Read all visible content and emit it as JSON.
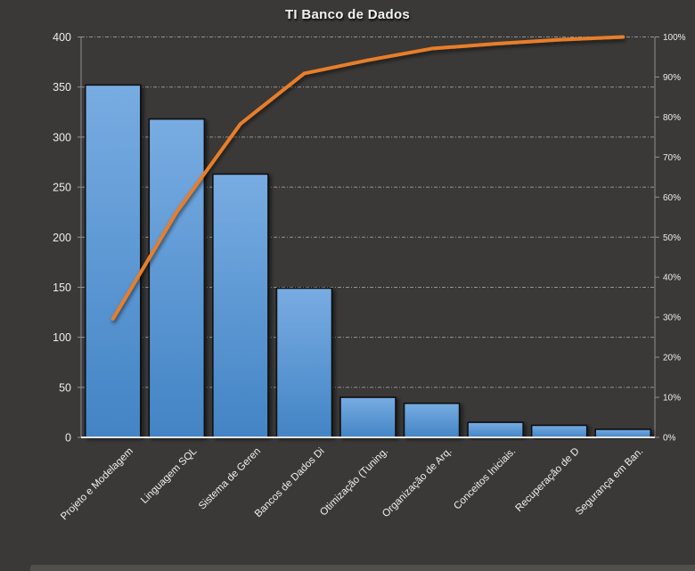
{
  "title": "TI Banco de Dados",
  "colors": {
    "background": "#3a3938",
    "bar_top": "#78ace2",
    "bar_bottom": "#4384c5",
    "bar_border": "#0d0d0d",
    "line": "#e87e2b",
    "grid": "#cccccc",
    "axis": "#8f8f8f",
    "baseline": "#f0f0f0",
    "text": "#ededed",
    "bottom_strip": "#504f4c"
  },
  "chart_data": {
    "type": "bar",
    "subtype": "pareto",
    "title": "TI Banco de Dados",
    "legend": "none",
    "grid": "horizontal-dashed",
    "categories": [
      "Projeto e Modelagem",
      "Linguagem SQL",
      "Sistema de Geren",
      "Bancos de Dados Di",
      "Otimização (Tuning.",
      "Organização de Arq.",
      "Conceitos Iniciais.",
      "Recuperação de D",
      "Segurança em Ban."
    ],
    "bar_values": [
      352,
      318,
      263,
      149,
      40,
      34,
      15,
      12,
      8
    ],
    "cumulative_percent": [
      29.6,
      56.3,
      78.3,
      90.9,
      94.2,
      97.1,
      98.3,
      99.3,
      100
    ],
    "bar_color": "#5b9bd5",
    "line_color": "#e87e2b",
    "y_left": {
      "min": 0,
      "max": 400,
      "tick_values": [
        0,
        50,
        100,
        150,
        200,
        250,
        300,
        350,
        400
      ],
      "tick_labels": [
        "0",
        "50",
        "100",
        "150",
        "200",
        "250",
        "300",
        "350",
        "400"
      ]
    },
    "y_right": {
      "min": 0,
      "max": 100,
      "tick_values": [
        0,
        10,
        20,
        30,
        40,
        50,
        60,
        70,
        80,
        90,
        100
      ],
      "tick_labels": [
        "0%",
        "10%",
        "20%",
        "30%",
        "40%",
        "50%",
        "60%",
        "70%",
        "80%",
        "90%",
        "100%"
      ]
    }
  }
}
